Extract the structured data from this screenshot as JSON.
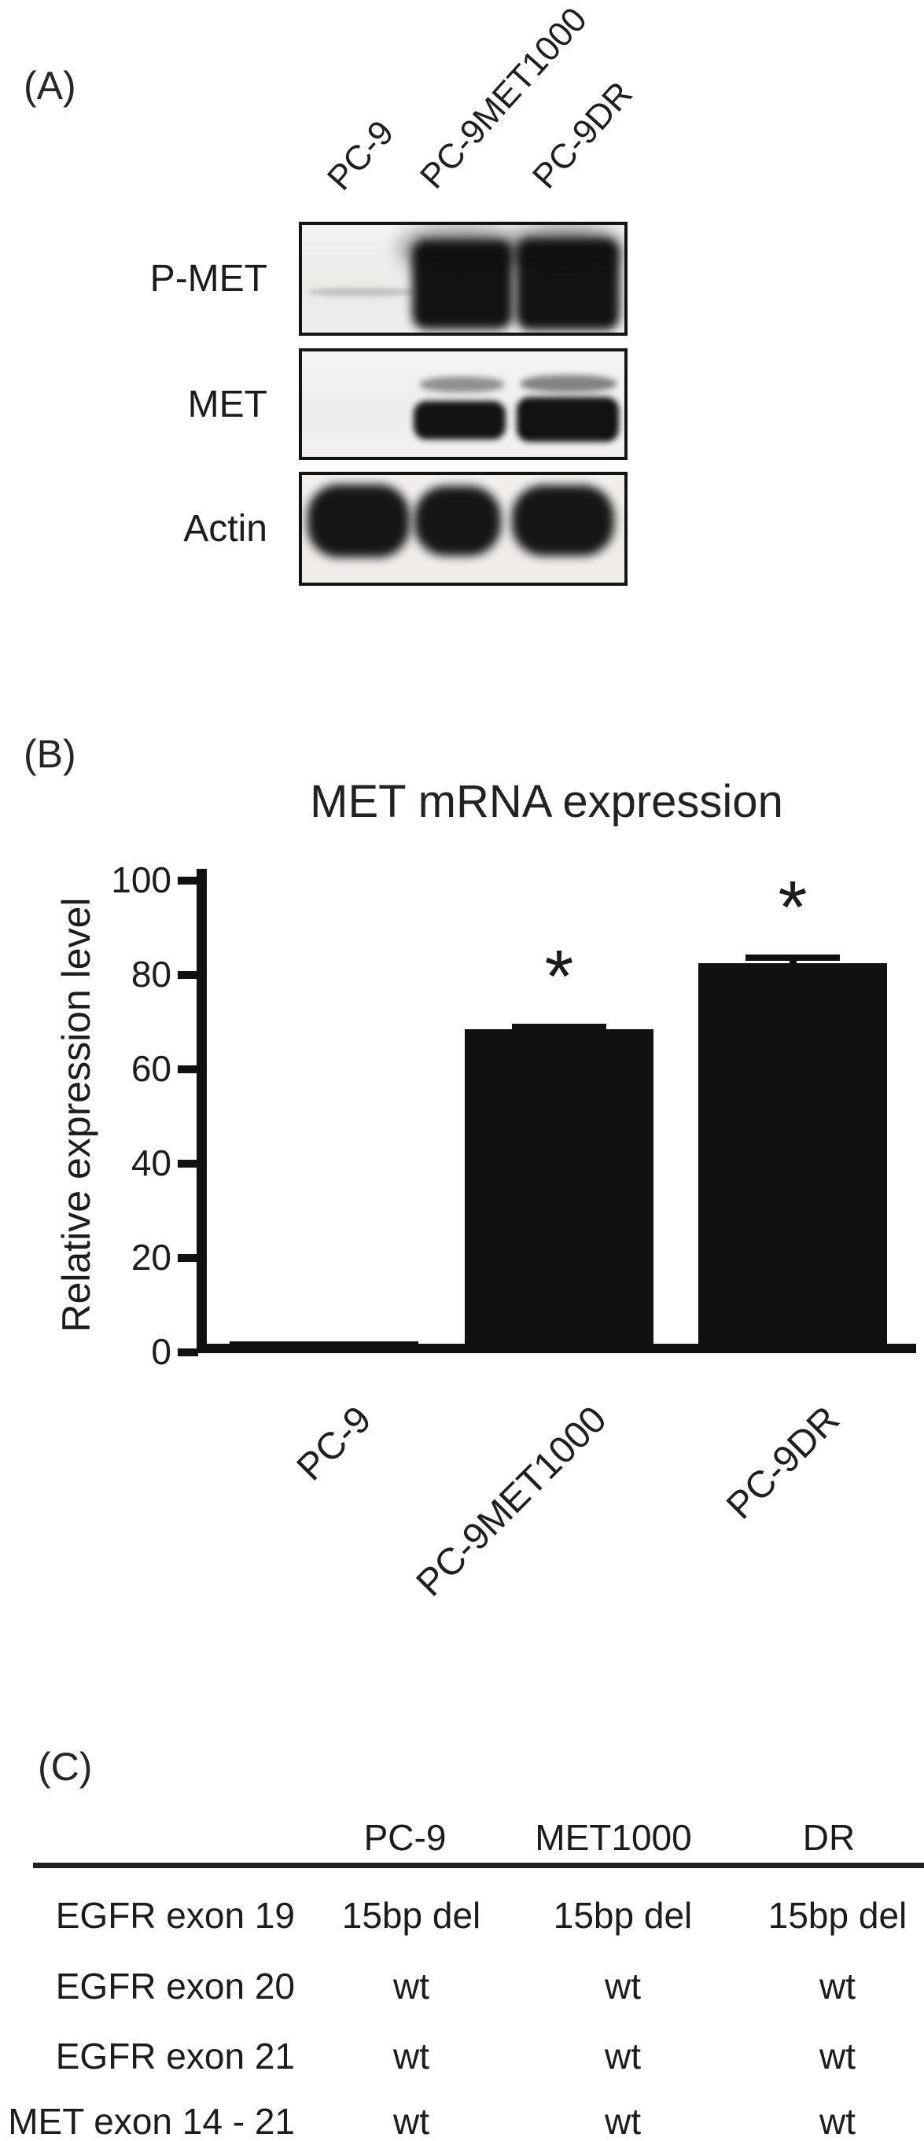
{
  "panel_a": {
    "label": "(A)",
    "lane_labels": [
      "PC-9",
      "PC-9MET1000",
      "PC-9DR"
    ],
    "blot_rows": [
      {
        "label": "P-MET",
        "lane_bands": [
          "faint",
          "strong",
          "strong"
        ]
      },
      {
        "label": "MET",
        "lane_bands": [
          "none",
          "doublet",
          "doublet"
        ]
      },
      {
        "label": "Actin",
        "lane_bands": [
          "strong",
          "strong",
          "strong"
        ]
      }
    ]
  },
  "panel_b": {
    "label": "(B)"
  },
  "chart_data": {
    "type": "bar",
    "title": "MET mRNA expression",
    "xlabel": "",
    "ylabel": "Relative expression level",
    "categories": [
      "PC-9",
      "PC-9MET1000",
      "PC-9DR"
    ],
    "values": [
      1,
      68,
      82
    ],
    "errors": [
      0,
      1,
      1.7
    ],
    "significance": [
      "",
      "*",
      "*"
    ],
    "ylim": [
      0,
      100
    ],
    "yticks": [
      0,
      20,
      40,
      60,
      80,
      100
    ],
    "bar_color": "#111111",
    "grid": false,
    "legend": false
  },
  "panel_c": {
    "label": "(C)",
    "table": {
      "columns": [
        "PC-9",
        "MET1000",
        "DR"
      ],
      "rows": [
        {
          "label": "EGFR exon 19",
          "values": [
            "15bp del",
            "15bp del",
            "15bp del"
          ]
        },
        {
          "label": "EGFR exon 20",
          "values": [
            "wt",
            "wt",
            "wt"
          ]
        },
        {
          "label": "EGFR exon 21",
          "values": [
            "wt",
            "wt",
            "wt"
          ]
        },
        {
          "label": "MET exon 14 - 21",
          "values": [
            "wt",
            "wt",
            "wt"
          ]
        }
      ]
    }
  }
}
